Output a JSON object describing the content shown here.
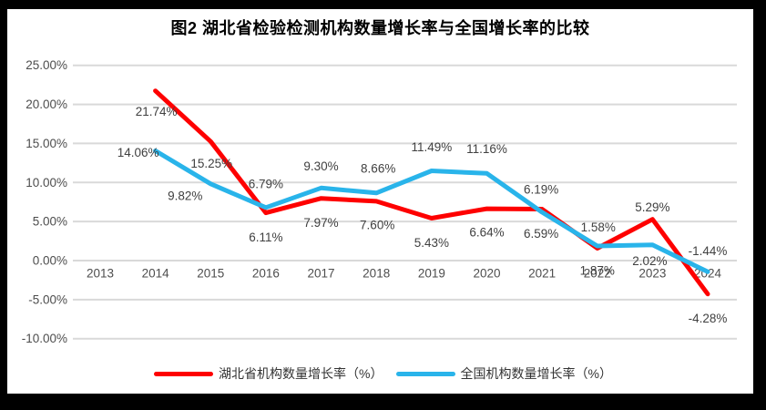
{
  "title": "图2  湖北省检验检测机构数量增长率与全国增长率的比较",
  "colors": {
    "hubei": "#fe0000",
    "national": "#29b4ea",
    "grid": "#d9d9d9",
    "axis_text": "#4d4d4d",
    "label_text": "#404040",
    "frame": "#000000",
    "background": "#ffffff"
  },
  "chart_data": {
    "type": "line",
    "title": "图2  湖北省检验检测机构数量增长率与全国增长率的比较",
    "categories": [
      "2013",
      "2014",
      "2015",
      "2016",
      "2017",
      "2018",
      "2019",
      "2020",
      "2021",
      "2022",
      "2023",
      "2024"
    ],
    "series": [
      {
        "name": "湖北省机构数量增长率（%）",
        "color_key": "hubei",
        "values": [
          null,
          21.74,
          15.25,
          6.11,
          7.97,
          7.6,
          5.43,
          6.64,
          6.59,
          1.58,
          5.29,
          -4.28
        ],
        "labels": [
          null,
          "21.74%",
          "15.25%",
          "6.11%",
          "7.97%",
          "7.60%",
          "5.43%",
          "6.64%",
          "6.59%",
          "1.58%",
          "5.29%",
          "-4.28%"
        ],
        "label_offsets": [
          null,
          [
            1,
            23
          ],
          [
            1,
            24
          ],
          [
            0,
            27
          ],
          [
            0,
            27
          ],
          [
            1,
            26
          ],
          [
            0,
            27
          ],
          [
            0,
            26
          ],
          [
            -1,
            27
          ],
          [
            1,
            -23
          ],
          [
            0,
            -13
          ],
          [
            0,
            27
          ]
        ]
      },
      {
        "name": "全国机构数量增长率（%）",
        "color_key": "national",
        "values": [
          null,
          14.06,
          9.82,
          6.79,
          9.3,
          8.66,
          11.49,
          11.16,
          6.19,
          1.87,
          2.02,
          -1.44
        ],
        "labels": [
          null,
          "14.06%",
          "9.82%",
          "6.79%",
          "9.30%",
          "8.66%",
          "11.49%",
          "11.16%",
          "6.19%",
          "1.87%",
          "2.02%",
          "-1.44%"
        ],
        "label_offsets": [
          null,
          [
            -19,
            2
          ],
          [
            -28,
            13
          ],
          [
            0,
            -26
          ],
          [
            0,
            -24
          ],
          [
            2,
            -27
          ],
          [
            0,
            -26
          ],
          [
            0,
            -27
          ],
          [
            -1,
            -25
          ],
          [
            0,
            27
          ],
          [
            -3,
            18
          ],
          [
            0,
            -23
          ]
        ]
      }
    ],
    "y_axis": {
      "ticks": [
        "25.00%",
        "20.00%",
        "15.00%",
        "10.00%",
        "5.00%",
        "0.00%",
        "-5.00%",
        "-10.00%"
      ],
      "tick_values": [
        25,
        20,
        15,
        10,
        5,
        0,
        -5,
        -10
      ],
      "min": -10,
      "max": 25
    },
    "xlabel": "",
    "ylabel": "",
    "grid": true,
    "legend_position": "bottom"
  },
  "legend": {
    "items": [
      {
        "label": "湖北省机构数量增长率（%）",
        "color_key": "hubei"
      },
      {
        "label": "全国机构数量增长率（%）",
        "color_key": "national"
      }
    ]
  }
}
